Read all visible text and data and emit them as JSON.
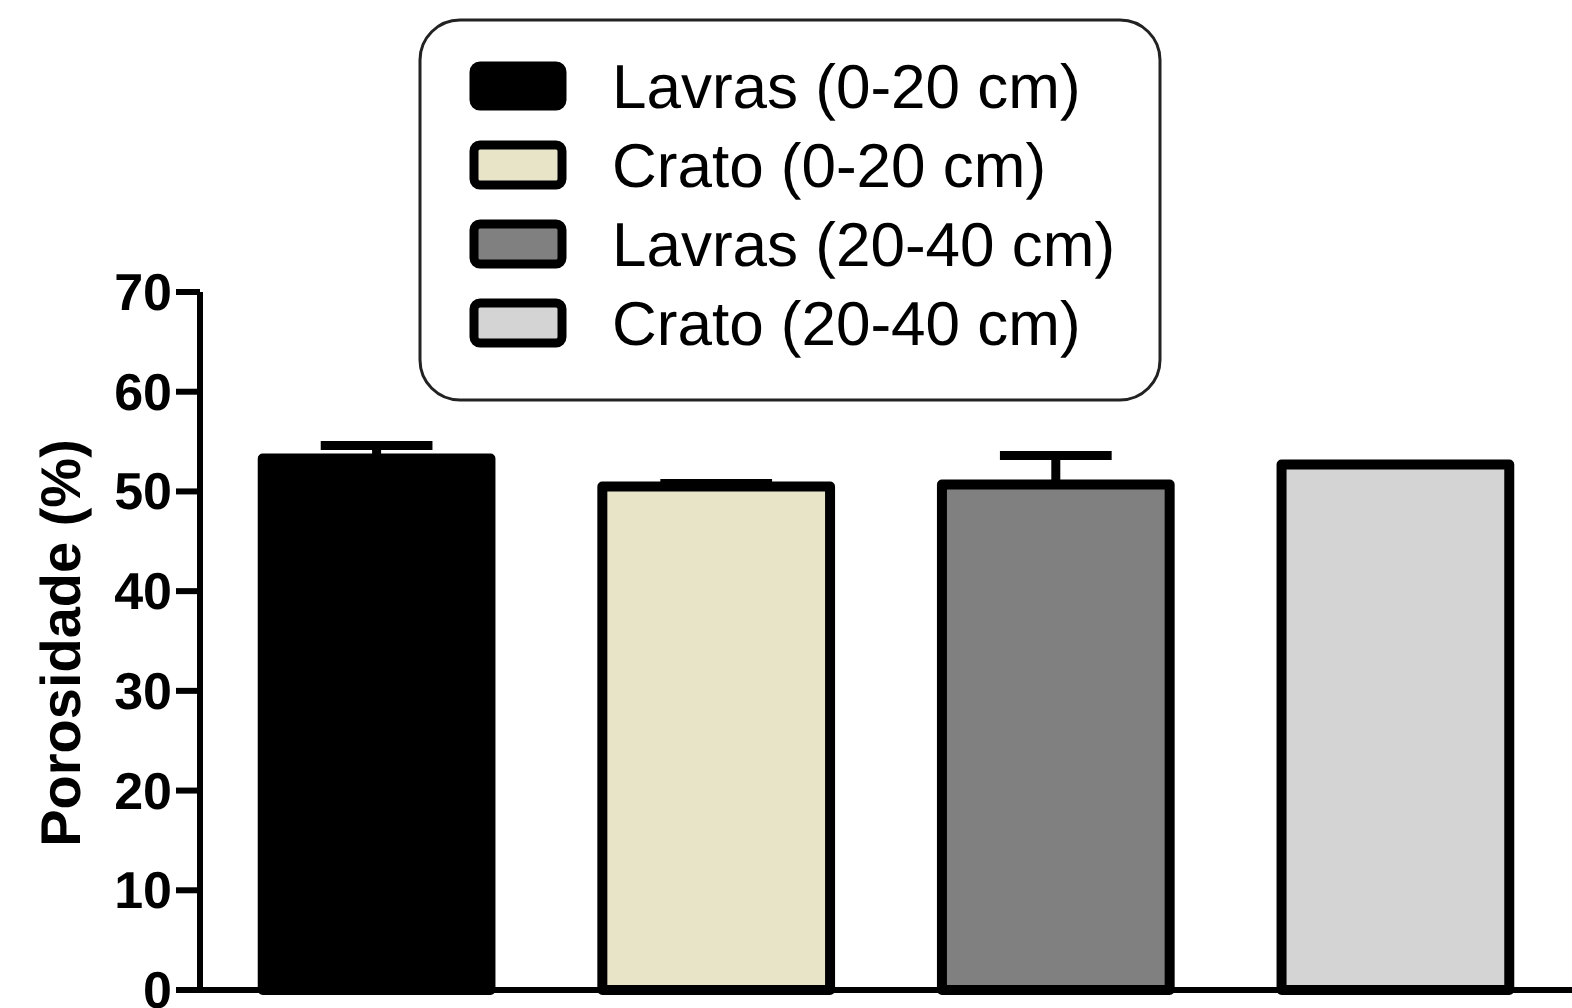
{
  "chart_data": {
    "type": "bar",
    "categories": [
      null
    ],
    "ylabel": "Porosidade (%)",
    "ylim": [
      0,
      70
    ],
    "yticks": [
      0,
      10,
      20,
      30,
      40,
      50,
      60,
      70
    ],
    "legend": "top",
    "series": [
      {
        "name": "Lavras (0-20 cm)",
        "color": "#000000",
        "values": [
          53.3
        ],
        "errors": [
          [
            53.3,
            54.6
          ]
        ]
      },
      {
        "name": "Crato (0-20 cm)",
        "color": "#e8e4c8",
        "values": [
          50.5
        ],
        "errors": [
          [
            50.5,
            50.8
          ]
        ]
      },
      {
        "name": "Lavras (20-40 cm)",
        "color": "#808080",
        "values": [
          50.7
        ],
        "errors": [
          [
            50.7,
            53.6
          ]
        ]
      },
      {
        "name": "Crato (20-40 cm)",
        "color": "#d4d4d4",
        "values": [
          52.7
        ],
        "errors": [
          null
        ]
      }
    ]
  }
}
